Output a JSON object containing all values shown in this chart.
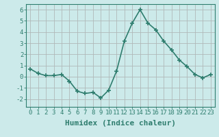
{
  "x": [
    0,
    1,
    2,
    3,
    4,
    5,
    6,
    7,
    8,
    9,
    10,
    11,
    12,
    13,
    14,
    15,
    16,
    17,
    18,
    19,
    20,
    21,
    22,
    23
  ],
  "y": [
    0.7,
    0.3,
    0.1,
    0.1,
    0.2,
    -0.4,
    -1.3,
    -1.5,
    -1.4,
    -1.9,
    -1.2,
    0.5,
    3.2,
    4.8,
    6.0,
    4.8,
    4.2,
    3.2,
    2.4,
    1.5,
    0.9,
    0.2,
    -0.1,
    0.2
  ],
  "line_color": "#2e7d6e",
  "marker": "+",
  "marker_size": 5,
  "xlabel": "Humidex (Indice chaleur)",
  "xlabel_fontsize": 8,
  "ylabel_ticks": [
    -2,
    -1,
    0,
    1,
    2,
    3,
    4,
    5,
    6
  ],
  "xlim": [
    -0.5,
    23.5
  ],
  "ylim": [
    -2.7,
    6.5
  ],
  "bg_color": "#cceaea",
  "grid_color": "#b0b8b8",
  "axes_color": "#2e7d6e",
  "tick_label_fontsize": 6.5,
  "linewidth": 1.2
}
